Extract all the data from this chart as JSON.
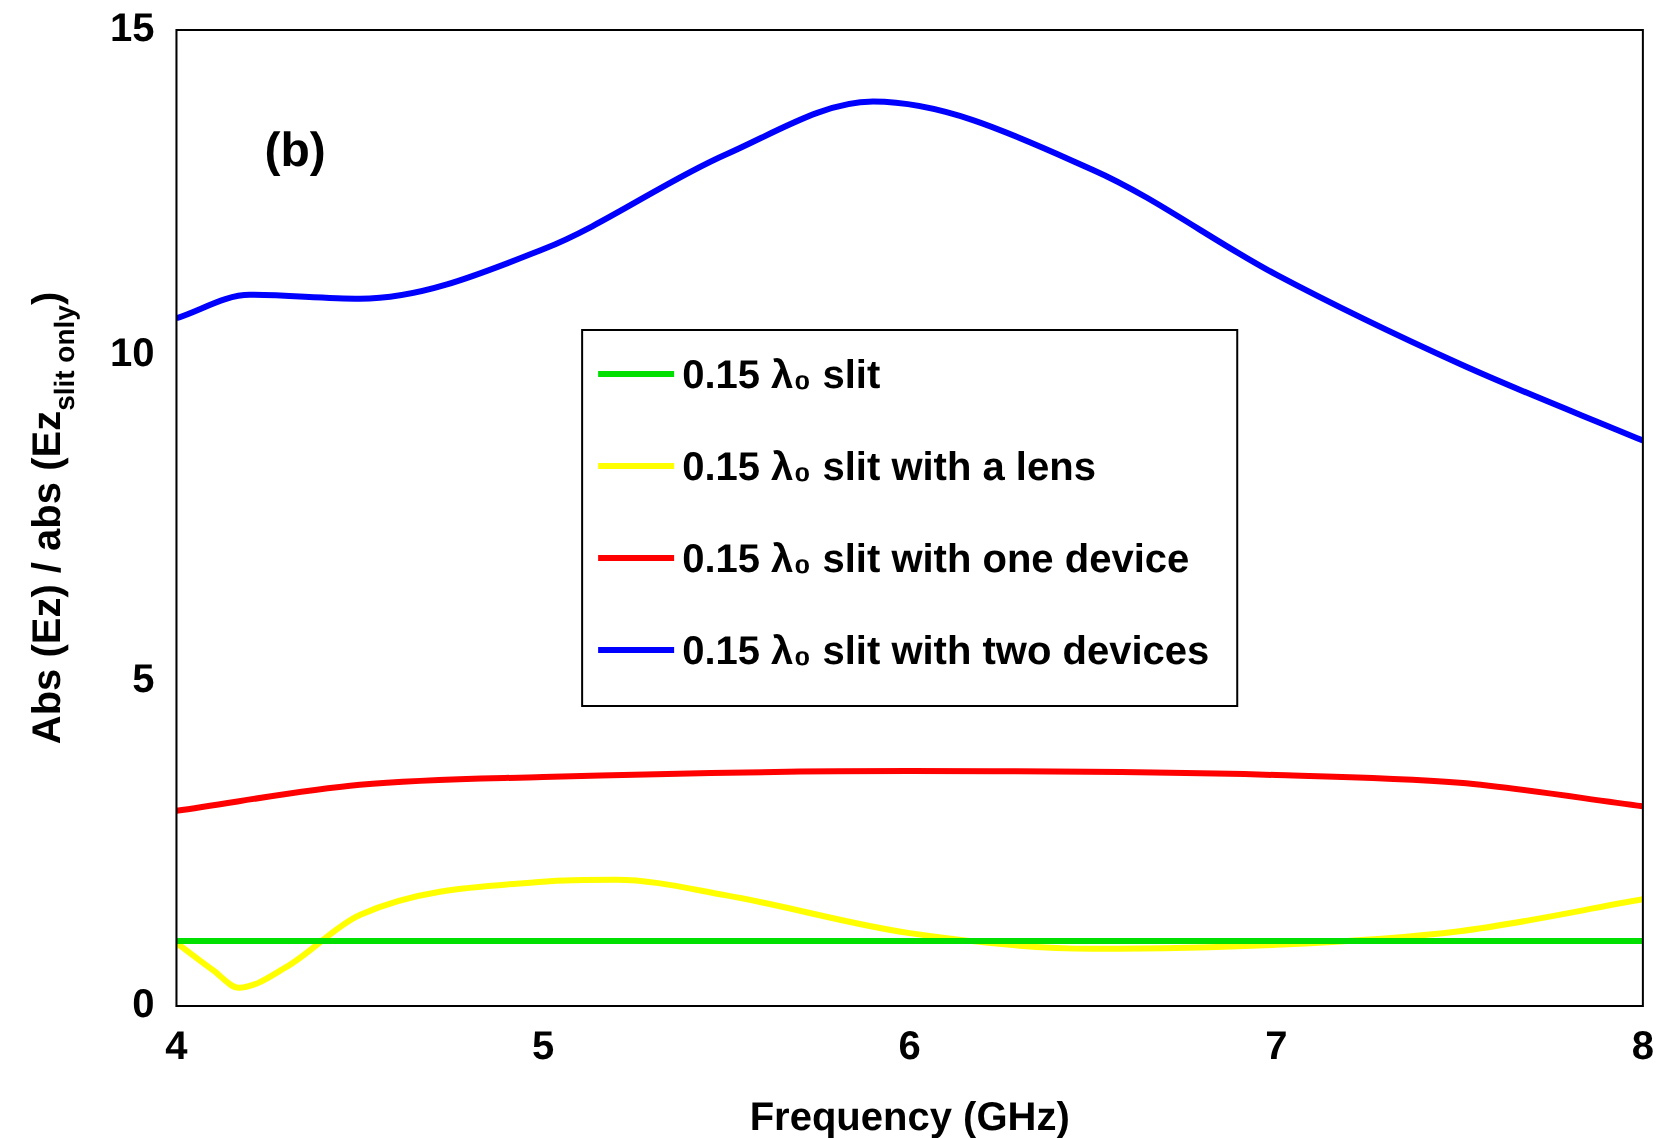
{
  "chart_data": {
    "type": "line",
    "xlabel": "Frequency (GHz)",
    "ylabel": "Abs (Ez) / abs (Ez$_{slit only}$)",
    "xlim": [
      4,
      8
    ],
    "xticks": [
      4,
      5,
      6,
      7,
      8
    ],
    "ylim": [
      0,
      15
    ],
    "yticks": [
      0,
      5,
      10,
      15
    ],
    "grid": false,
    "legend": "center",
    "marker": "none",
    "line_style": "solid",
    "annotations": [
      "(b)"
    ],
    "series": [
      {
        "name": "0.15 λ₀ slit",
        "color": "#00e000",
        "x": [
          4,
          8
        ],
        "values": [
          1,
          1
        ]
      },
      {
        "name": "0.15 λ₀ slit with a lens",
        "color": "#ffff00",
        "x": [
          4,
          4.1,
          4.17,
          4.3,
          4.5,
          5,
          5.2,
          5.5,
          6,
          6.5,
          7,
          7.5,
          8
        ],
        "values": [
          0.97,
          0.55,
          0.28,
          0.6,
          1.4,
          1.91,
          1.94,
          1.7,
          1.12,
          0.88,
          0.94,
          1.15,
          1.64
        ]
      },
      {
        "name": "0.15 λ₀ slit with one device",
        "color": "#ff0000",
        "x": [
          4,
          4.5,
          5,
          6,
          7,
          7.5,
          8
        ],
        "values": [
          3.0,
          3.4,
          3.52,
          3.61,
          3.55,
          3.43,
          3.07
        ]
      },
      {
        "name": "0.15 λ₀ slit with two devices",
        "color": "#0000ff",
        "x": [
          4,
          4.2,
          4.5,
          5,
          5.5,
          5.9,
          6.5,
          7,
          7.5,
          8
        ],
        "values": [
          10.57,
          10.93,
          10.87,
          11.63,
          13.09,
          13.9,
          12.85,
          11.24,
          9.87,
          8.69
        ]
      }
    ]
  }
}
